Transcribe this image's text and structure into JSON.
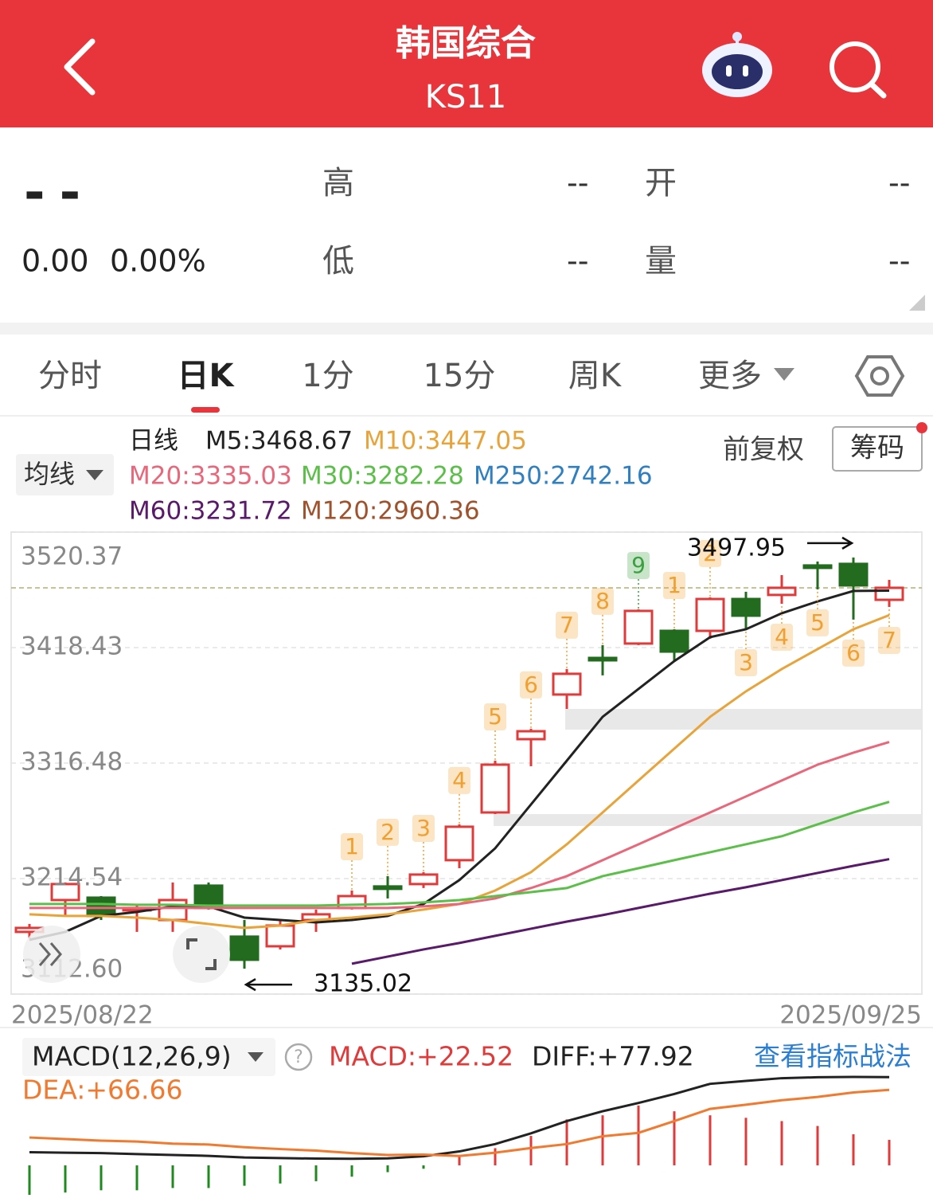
{
  "header": {
    "title": "韩国综合",
    "subtitle": "KS11"
  },
  "quote": {
    "price": "--",
    "change": "0.00",
    "change_pct": "0.00%",
    "high_label": "高",
    "high": "--",
    "open_label": "开",
    "open": "--",
    "low_label": "低",
    "low": "--",
    "volume_label": "量",
    "volume": "--"
  },
  "tabs": [
    "分时",
    "日K",
    "1分",
    "15分",
    "周K",
    "更多"
  ],
  "active_tab": 1,
  "chart_data": [
    {
      "type": "candlestick",
      "period": "日线",
      "ma_button": "均线",
      "adjust": "前复权",
      "chips": "筹码",
      "categories": [
        "2025/08/22",
        null,
        null,
        null,
        null,
        null,
        null,
        null,
        null,
        null,
        null,
        null,
        null,
        null,
        null,
        null,
        null,
        null,
        null,
        null,
        null,
        null,
        null,
        null,
        "2025/09/25"
      ],
      "open": [
        3167.5,
        3195.6,
        3197.7,
        3186.5,
        3178.0,
        3208.3,
        3163.3,
        3154.8,
        3178.0,
        3188.6,
        3207.6,
        3209.7,
        3230.8,
        3272.9,
        3337.6,
        3377.0,
        3409.3,
        3422.0,
        3433.2,
        3433.2,
        3461.3,
        3464.9,
        3490.9,
        3492.3,
        3460.6
      ],
      "high": [
        3174.5,
        3211.1,
        3199.1,
        3192.1,
        3211.1,
        3211.1,
        3178.0,
        3178.0,
        3187.2,
        3204.0,
        3216.7,
        3220.2,
        3262.4,
        3318.6,
        3346.8,
        3399.5,
        3420.6,
        3452.2,
        3434.6,
        3462.8,
        3467.7,
        3482.4,
        3494.4,
        3497.95,
        3478.2
      ],
      "low": [
        3161.9,
        3181.5,
        3178.0,
        3167.5,
        3167.5,
        3187.2,
        3135.02,
        3152.0,
        3167.5,
        3187.2,
        3197.0,
        3206.2,
        3223.7,
        3271.5,
        3313.7,
        3364.3,
        3393.9,
        3420.6,
        3406.5,
        3426.2,
        3434.6,
        3457.1,
        3469.8,
        3443.1,
        3454.3
      ],
      "close": [
        3171.0,
        3209.7,
        3181.5,
        3188.6,
        3195.6,
        3188.6,
        3142.9,
        3173.1,
        3183.0,
        3199.1,
        3206.2,
        3218.1,
        3260.3,
        3315.1,
        3344.6,
        3395.3,
        3407.2,
        3450.8,
        3414.9,
        3461.3,
        3446.6,
        3471.2,
        3489.5,
        3473.3,
        3471.2
      ],
      "up_color": "#e03a3a",
      "down_color": "#236b1f",
      "series": [
        {
          "name": "M5:3468.67",
          "color": "#222222",
          "values": [
            3160.5,
            3167.5,
            3181.6,
            3185.1,
            3190.0,
            3190.0,
            3180.1,
            3178.0,
            3175.9,
            3178.0,
            3181.6,
            3192.1,
            3213.2,
            3241.3,
            3280.0,
            3318.6,
            3357.3,
            3381.9,
            3406.5,
            3427.6,
            3434.6,
            3448.7,
            3459.2,
            3468.4,
            3468.67
          ]
        },
        {
          "name": "M10:3447.05",
          "color": "#e8a43a",
          "values": [
            3183.0,
            3181.6,
            3181.6,
            3180.1,
            3178.0,
            3174.5,
            3171.0,
            3173.1,
            3178.0,
            3180.1,
            3183.0,
            3187.2,
            3192.1,
            3204.0,
            3220.2,
            3244.8,
            3272.9,
            3301.1,
            3329.2,
            3357.3,
            3379.8,
            3399.5,
            3417.1,
            3434.6,
            3447.05
          ]
        },
        {
          "name": "M20:3335.03",
          "color": "#e8677a",
          "values": [
            3188.6,
            3188.6,
            3188.6,
            3188.6,
            3188.6,
            3188.6,
            3188.6,
            3188.6,
            3188.6,
            3188.6,
            3188.6,
            3190.0,
            3192.1,
            3197.0,
            3206.2,
            3216.7,
            3230.8,
            3244.8,
            3258.9,
            3272.9,
            3287.0,
            3301.1,
            3315.1,
            3325.7,
            3335.03
          ]
        },
        {
          "name": "M30:3282.28",
          "color": "#5cbf4a",
          "values": [
            3192.1,
            3192.1,
            3192.1,
            3191.4,
            3191.4,
            3190.7,
            3190.7,
            3190.7,
            3190.7,
            3191.4,
            3192.1,
            3193.5,
            3195.6,
            3199.1,
            3202.6,
            3206.2,
            3216.7,
            3223.7,
            3230.8,
            3237.8,
            3244.8,
            3251.9,
            3262.4,
            3272.9,
            3282.28
          ]
        },
        {
          "name": "M250:2742.16",
          "color": "#2f7fc1"
        },
        {
          "name": "M60:3231.72",
          "color": "#5a1a6a",
          "values": [
            null,
            null,
            null,
            null,
            null,
            null,
            null,
            null,
            null,
            3139.4,
            3145.7,
            3152.0,
            3157.7,
            3164.0,
            3170.3,
            3176.6,
            3182.3,
            3188.6,
            3194.9,
            3201.2,
            3206.9,
            3213.2,
            3219.5,
            3225.8,
            3231.72
          ]
        },
        {
          "name": "M120:2960.36",
          "color": "#a0522d"
        }
      ],
      "ylim": [
        3112.6,
        3520.37
      ],
      "yticks": [
        {
          "value": 3112.6,
          "label": "3112.60"
        },
        3214.54,
        3316.48,
        3418.43,
        3520.37
      ],
      "grid": true,
      "max_label": "3497.95",
      "min_label": "3135.02",
      "td_above": [
        null,
        null,
        null,
        null,
        null,
        null,
        null,
        null,
        null,
        {
          "label": "1",
          "color": "#f0a030"
        },
        {
          "label": "2",
          "color": "#f0a030"
        },
        {
          "label": "3",
          "color": "#f0a030"
        },
        {
          "label": "4",
          "color": "#f0a030"
        },
        {
          "label": "5",
          "color": "#f0a030"
        },
        {
          "label": "6",
          "color": "#f0a030"
        },
        {
          "label": "7",
          "color": "#f0a030"
        },
        {
          "label": "8",
          "color": "#f0a030"
        },
        {
          "label": "9",
          "color": "#3aa040"
        },
        {
          "label": "1",
          "color": "#f0a030"
        },
        {
          "label": "2",
          "color": "#f0a030"
        },
        null,
        null,
        null,
        null,
        null
      ],
      "td_below": [
        null,
        null,
        null,
        null,
        null,
        null,
        null,
        null,
        null,
        null,
        null,
        null,
        null,
        null,
        null,
        null,
        null,
        null,
        null,
        null,
        {
          "label": "3",
          "color": "#f0a030"
        },
        {
          "label": "4",
          "color": "#f0a030"
        },
        {
          "label": "5",
          "color": "#f0a030"
        },
        {
          "label": "6",
          "color": "#f0a030"
        },
        {
          "label": "7",
          "color": "#f0a030"
        }
      ]
    },
    {
      "type": "macd",
      "title": "MACD(12,26,9)",
      "macd_label": "MACD:+22.52",
      "diff_label": "DIFF:+77.92",
      "dea_label": "DEA:+66.66",
      "link": "查看指标战法",
      "up_color": "#e03a3a",
      "down_color": "#1e8a1e",
      "diff_color": "#222222",
      "dea_color": "#f07a30",
      "macd": [
        -26,
        -24,
        -22,
        -22,
        -20,
        -20,
        -18,
        -16,
        -14,
        -10,
        -6,
        -3,
        8,
        15.2,
        26,
        40.6,
        44.2,
        52.9,
        47.8,
        44.2,
        42,
        39.1,
        34.8,
        27.5,
        22.52
      ],
      "diff": [
        11.6,
        11.2,
        10.8,
        10.0,
        9.2,
        8.4,
        7.0,
        6.4,
        6.0,
        5.8,
        6.2,
        8.0,
        12.3,
        18.8,
        28.3,
        39.1,
        47.8,
        55.1,
        63.0,
        72.0,
        74.6,
        77.0,
        77.8,
        78.1,
        77.92
      ],
      "dea": [
        24.6,
        23.2,
        21.8,
        21.0,
        19.2,
        18.4,
        16.0,
        14.4,
        13.0,
        10.8,
        9.2,
        9.5,
        8.3,
        11.2,
        15.3,
        18.8,
        25.7,
        28.7,
        39.1,
        49.9,
        53.6,
        57.5,
        60.4,
        64.4,
        66.66
      ]
    }
  ]
}
